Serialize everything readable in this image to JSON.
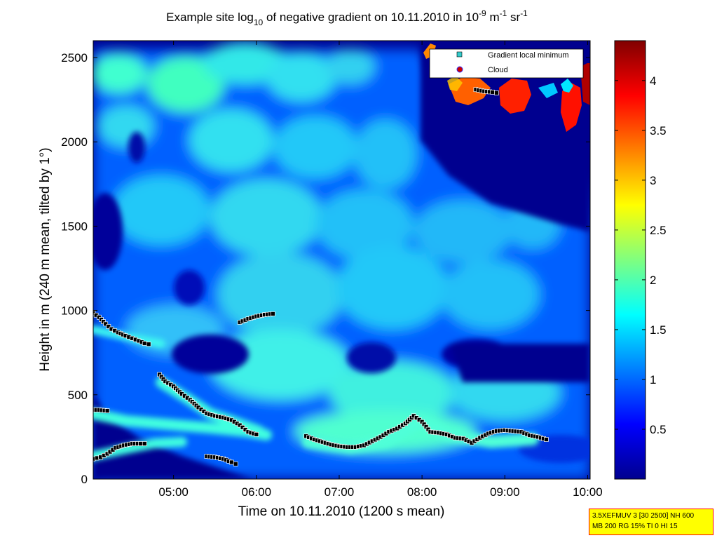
{
  "chart_data": {
    "type": "heatmap",
    "title": {
      "pre": "Example site log",
      "sub": "10",
      "mid": " of negative gradient on 10.11.2010 in 10",
      "sup1": "-9",
      "unit_m": " m",
      "sup2": "-1",
      "unit_sr": " sr",
      "sup3": "-1"
    },
    "xlabel": "Time on 10.11.2010 (1200 s mean)",
    "ylabel": "Height in m (240 m mean, tilted by 1°)",
    "xlim": [
      4.03,
      10.03
    ],
    "ylim": [
      0,
      2600
    ],
    "x_ticks": [
      {
        "value": 5,
        "label": "05:00"
      },
      {
        "value": 6,
        "label": "06:00"
      },
      {
        "value": 7,
        "label": "07:00"
      },
      {
        "value": 8,
        "label": "08:00"
      },
      {
        "value": 9,
        "label": "09:00"
      },
      {
        "value": 10,
        "label": "10:00"
      }
    ],
    "y_ticks": [
      {
        "value": 0,
        "label": "0"
      },
      {
        "value": 500,
        "label": "500"
      },
      {
        "value": 1000,
        "label": "1000"
      },
      {
        "value": 1500,
        "label": "1500"
      },
      {
        "value": 2000,
        "label": "2000"
      },
      {
        "value": 2500,
        "label": "2500"
      }
    ],
    "colorbar": {
      "colormap": "jet",
      "range": [
        0,
        4.4
      ],
      "ticks": [
        {
          "value": 0.5,
          "label": "0.5"
        },
        {
          "value": 1,
          "label": "1"
        },
        {
          "value": 1.5,
          "label": "1.5"
        },
        {
          "value": 2,
          "label": "2"
        },
        {
          "value": 2.5,
          "label": "2.5"
        },
        {
          "value": 3,
          "label": "3"
        },
        {
          "value": 3.5,
          "label": "3.5"
        },
        {
          "value": 4,
          "label": "4"
        }
      ]
    },
    "legend": {
      "placement": "top-right",
      "entries": [
        {
          "label": "Gradient local minimum",
          "marker": "square",
          "color": "#33cccc"
        },
        {
          "label": "Cloud",
          "marker": "circle",
          "color": "#cc0000"
        }
      ]
    },
    "series": [
      {
        "kind": "gradient-local-minimum",
        "segments": [
          [
            [
              4.03,
              985
            ],
            [
              4.1,
              960
            ],
            [
              4.18,
              920
            ],
            [
              4.25,
              890
            ],
            [
              4.33,
              870
            ],
            [
              4.42,
              850
            ],
            [
              4.5,
              835
            ],
            [
              4.58,
              820
            ],
            [
              4.65,
              805
            ],
            [
              4.7,
              800
            ]
          ],
          [
            [
              4.03,
              410
            ],
            [
              4.1,
              410
            ],
            [
              4.2,
              405
            ]
          ],
          [
            [
              4.03,
              120
            ],
            [
              4.12,
              130
            ],
            [
              4.2,
              150
            ],
            [
              4.3,
              185
            ],
            [
              4.4,
              200
            ],
            [
              4.5,
              210
            ],
            [
              4.6,
              210
            ],
            [
              4.65,
              210
            ]
          ],
          [
            [
              4.83,
              620
            ],
            [
              4.9,
              580
            ],
            [
              5.0,
              550
            ],
            [
              5.1,
              505
            ],
            [
              5.2,
              470
            ],
            [
              5.3,
              425
            ],
            [
              5.4,
              390
            ],
            [
              5.5,
              375
            ],
            [
              5.6,
              365
            ],
            [
              5.7,
              350
            ],
            [
              5.8,
              320
            ],
            [
              5.9,
              280
            ],
            [
              6.0,
              265
            ]
          ],
          [
            [
              5.4,
              135
            ],
            [
              5.5,
              130
            ],
            [
              5.6,
              120
            ],
            [
              5.7,
              100
            ],
            [
              5.75,
              90
            ]
          ],
          [
            [
              5.8,
              930
            ],
            [
              5.9,
              950
            ],
            [
              6.0,
              965
            ],
            [
              6.1,
              975
            ],
            [
              6.2,
              980
            ]
          ],
          [
            [
              6.6,
              255
            ],
            [
              6.7,
              235
            ],
            [
              6.8,
              220
            ],
            [
              6.9,
              205
            ],
            [
              7.0,
              195
            ],
            [
              7.1,
              190
            ],
            [
              7.2,
              190
            ],
            [
              7.3,
              200
            ],
            [
              7.4,
              225
            ],
            [
              7.5,
              250
            ],
            [
              7.6,
              280
            ],
            [
              7.7,
              300
            ],
            [
              7.8,
              330
            ],
            [
              7.9,
              375
            ],
            [
              8.0,
              340
            ],
            [
              8.1,
              280
            ],
            [
              8.2,
              275
            ],
            [
              8.3,
              265
            ],
            [
              8.4,
              245
            ],
            [
              8.5,
              240
            ],
            [
              8.6,
              215
            ],
            [
              8.7,
              245
            ],
            [
              8.8,
              270
            ],
            [
              8.9,
              285
            ],
            [
              9.0,
              290
            ],
            [
              9.1,
              285
            ],
            [
              9.2,
              280
            ],
            [
              9.3,
              260
            ],
            [
              9.4,
              250
            ],
            [
              9.5,
              235
            ]
          ],
          [
            [
              8.65,
              2310
            ],
            [
              8.75,
              2300
            ],
            [
              8.85,
              2295
            ],
            [
              8.9,
              2290
            ]
          ]
        ]
      }
    ]
  },
  "infobox": {
    "line1": "3.5XEFMUV 3 [30 2500] NH 600",
    "line2": "MB 200 RG 15% TI 0 HI 15"
  }
}
